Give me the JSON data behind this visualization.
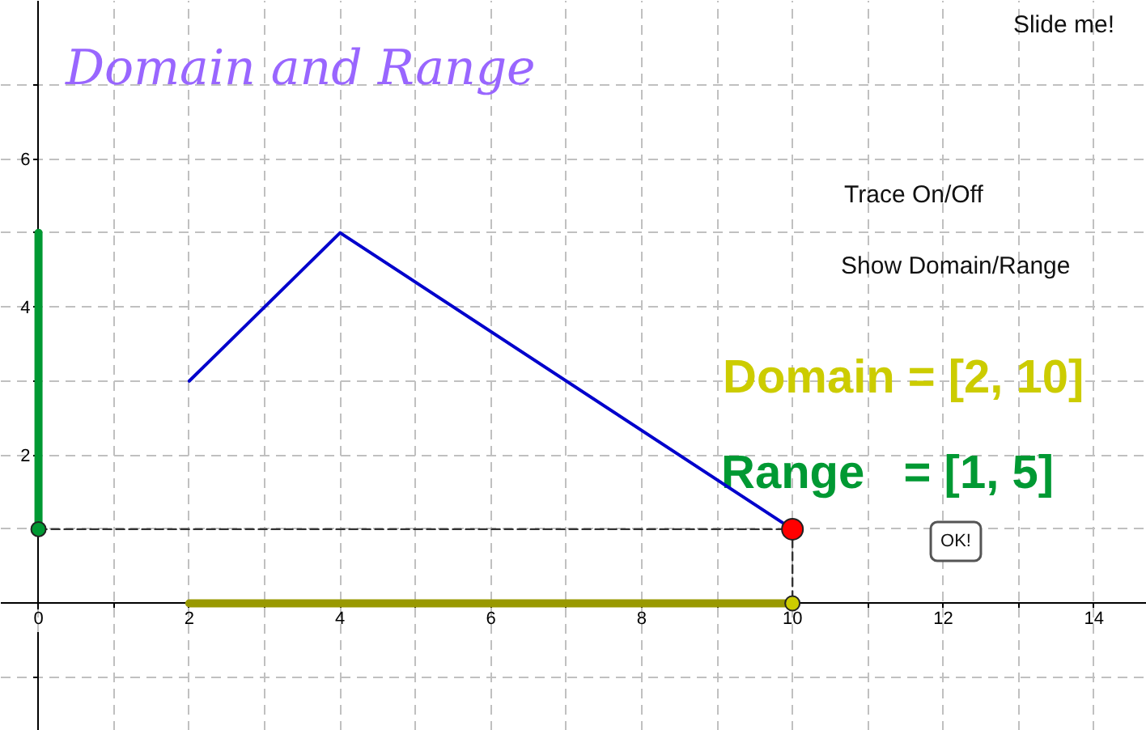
{
  "chart_data": {
    "type": "line",
    "title": "Domain and Range",
    "annotations": [
      "Slide me!",
      "Trace On/Off",
      "Show Domain/Range",
      "Domain = [2, 10]",
      "Range   = [1, 5]",
      "OK!"
    ],
    "series": [
      {
        "color": "#0000cc",
        "x": [
          2,
          4,
          10
        ],
        "values": [
          3,
          5,
          1
        ]
      },
      {
        "color": "#009933",
        "x": [
          0,
          0
        ],
        "values": [
          1,
          5
        ]
      },
      {
        "color": "#999900",
        "x": [
          2,
          10
        ],
        "values": [
          0,
          0
        ]
      },
      {
        "color": "#333333",
        "line_style": "dashed",
        "x": [
          0,
          10,
          10
        ],
        "values": [
          1,
          1,
          0
        ]
      },
      {
        "type": "scatter",
        "marker": "circle",
        "x": [
          0,
          10
        ],
        "values": [
          1,
          0
        ],
        "colors": [
          "#009933",
          "#cccc00"
        ]
      },
      {
        "type": "scatter",
        "marker": "circle",
        "color": "#ff0000",
        "x": [
          10
        ],
        "values": [
          1
        ]
      }
    ],
    "xlim": [
      -0.5,
      14.7
    ],
    "ylim": [
      -1.72,
      8.13
    ],
    "xticks": [
      0,
      {
        "value": 1,
        "label": null
      },
      2,
      {
        "value": 3,
        "label": null
      },
      4,
      {
        "value": 5,
        "label": null
      },
      6,
      {
        "value": 7,
        "label": null
      },
      8,
      {
        "value": 9,
        "label": null
      },
      10,
      {
        "value": 11,
        "label": null
      },
      12,
      {
        "value": 13,
        "label": null
      },
      14
    ],
    "yticks": [
      {
        "value": -1,
        "label": null
      },
      {
        "value": 1,
        "label": null
      },
      2,
      {
        "value": 3,
        "label": null
      },
      4,
      {
        "value": 5,
        "label": null
      },
      6,
      {
        "value": 7,
        "label": null
      }
    ],
    "grid": true
  }
}
